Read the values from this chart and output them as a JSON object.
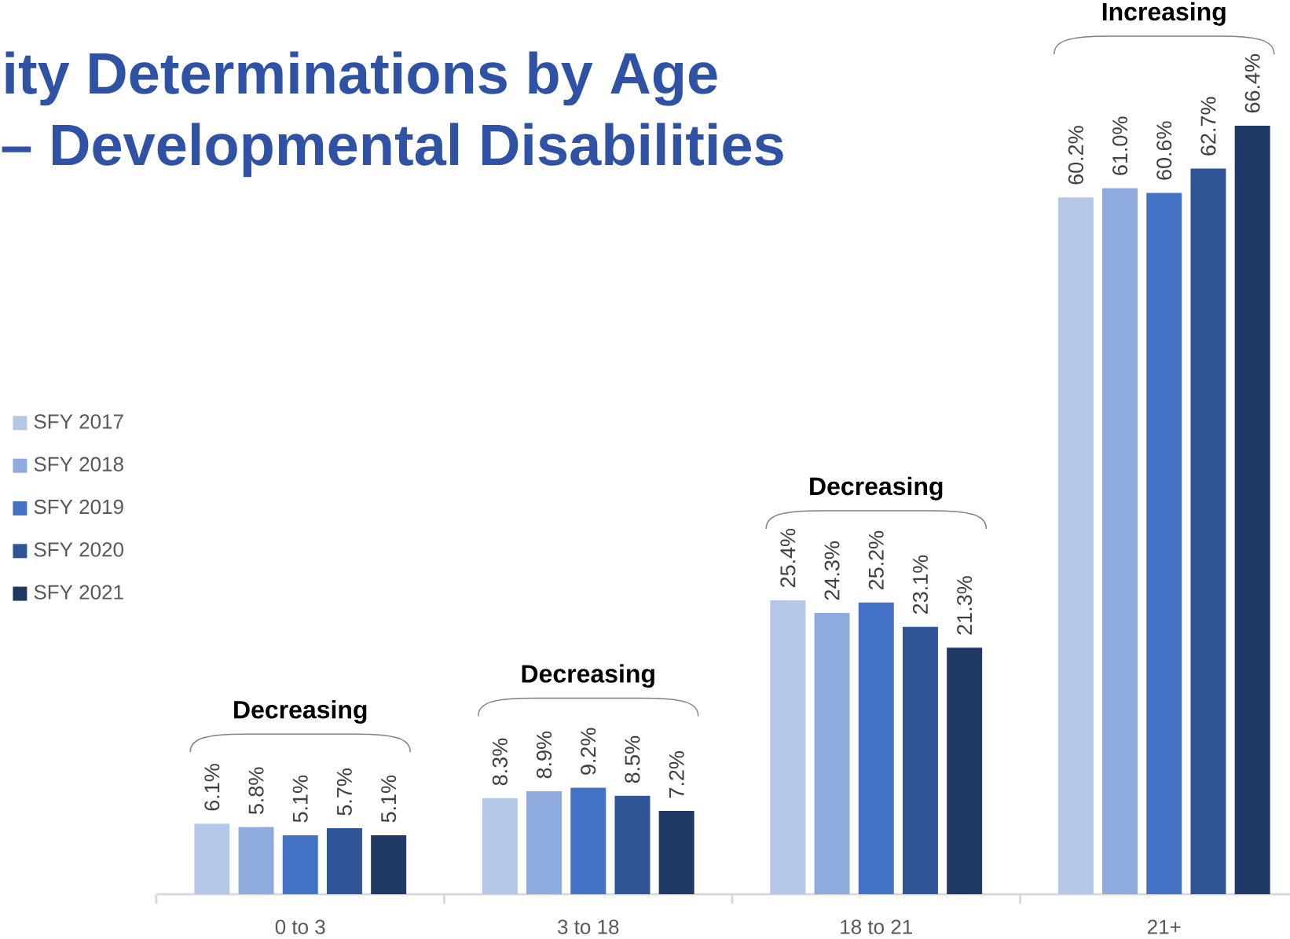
{
  "chart_data": {
    "type": "bar",
    "title": "ity Determinations by Age",
    "subtitle": "– Developmental Disabilities",
    "categories": [
      "0 to 3",
      "3 to 18",
      "18 to 21",
      "21+"
    ],
    "series": [
      {
        "name": "SFY 2017",
        "color": "#b4c7e7",
        "values": [
          6.1,
          8.3,
          25.4,
          60.2
        ],
        "value_labels": [
          "6.1%",
          "8.3%",
          "25.4%",
          "60.2%"
        ]
      },
      {
        "name": "SFY 2018",
        "color": "#8faadc",
        "values": [
          5.8,
          8.9,
          24.3,
          61.0
        ],
        "value_labels": [
          "5.8%",
          "8.9%",
          "24.3%",
          "61.0%"
        ]
      },
      {
        "name": "SFY 2019",
        "color": "#4472c4",
        "values": [
          5.1,
          9.2,
          25.2,
          60.6
        ],
        "value_labels": [
          "5.1%",
          "9.2%",
          "25.2%",
          "60.6%"
        ]
      },
      {
        "name": "SFY 2020",
        "color": "#2f5597",
        "values": [
          5.7,
          8.5,
          23.1,
          62.7
        ],
        "value_labels": [
          "5.7%",
          "8.5%",
          "23.1%",
          "62.7%"
        ]
      },
      {
        "name": "SFY 2021",
        "color": "#203864",
        "values": [
          5.1,
          7.2,
          21.3,
          66.4
        ],
        "value_labels": [
          "5.1%",
          "7.2%",
          "21.3%",
          "66.4%"
        ]
      }
    ],
    "annotations": [
      "Decreasing",
      "Decreasing",
      "Decreasing",
      "Increasing"
    ],
    "legend": "left"
  }
}
